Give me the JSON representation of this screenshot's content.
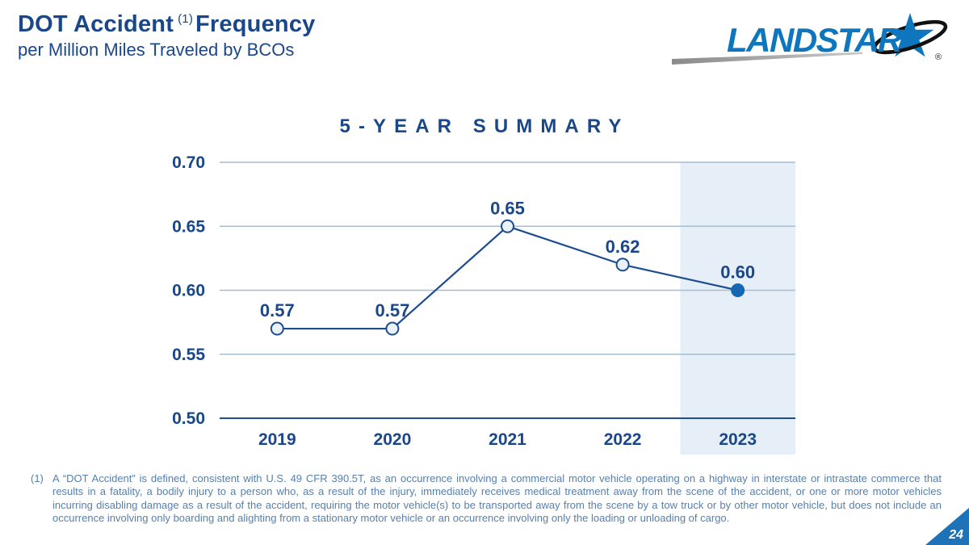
{
  "header": {
    "title_prefix": "DOT Accident",
    "title_footnote_ref": "(1)",
    "title_suffix": "Frequency",
    "subtitle": "per Million Miles Traveled by BCOs"
  },
  "logo": {
    "brand": "LANDSTAR",
    "registered": "®",
    "star_icon": "landstar-star-swoosh"
  },
  "chart_data": {
    "type": "line",
    "title": "5-YEAR SUMMARY",
    "categories": [
      "2019",
      "2020",
      "2021",
      "2022",
      "2023"
    ],
    "values": [
      0.57,
      0.57,
      0.65,
      0.62,
      0.6
    ],
    "labels": [
      "0.57",
      "0.57",
      "0.65",
      "0.62",
      "0.60"
    ],
    "yticks": [
      0.7,
      0.65,
      0.6,
      0.55,
      0.5
    ],
    "ylim": [
      0.5,
      0.7
    ],
    "xlabel": "",
    "ylabel": "",
    "grid": true,
    "legend": "none",
    "highlight_index": 4,
    "highlight_category": "2023"
  },
  "footnote": {
    "marker": "(1)",
    "text": "A “DOT Accident” is defined, consistent with U.S. 49 CFR 390.5T, as an occurrence involving a commercial motor vehicle operating on a highway in interstate or intrastate commerce that results in a fatality, a bodily injury to a person who, as a result of the injury, immediately receives medical treatment away from the scene of the accident, or one or more motor vehicles incurring disabling damage as a result of the accident, requiring the motor vehicle(s) to be transported away from the scene by a tow truck or by other motor vehicle, but does not include an occurrence involving only boarding and alighting from a stationary motor vehicle or an occurrence involving only the loading or unloading of cargo."
  },
  "page_number": "24",
  "colors": {
    "navy_text": "#1A4789",
    "landstar_blue": "#0E76BC",
    "footnote_blue": "#5680AE",
    "gridline": "#A6BCD1",
    "axis": "#1E4E8F",
    "line": "#1E4E8F",
    "marker_open_fill": "#E9F1F9",
    "marker_filled": "#1467B2",
    "highlight_band": "#E6EFF8",
    "page_triangle": "#1E72B8",
    "swoosh_gray_dark": "#8a8a8a",
    "swoosh_gray_light": "#c9c9c9"
  }
}
